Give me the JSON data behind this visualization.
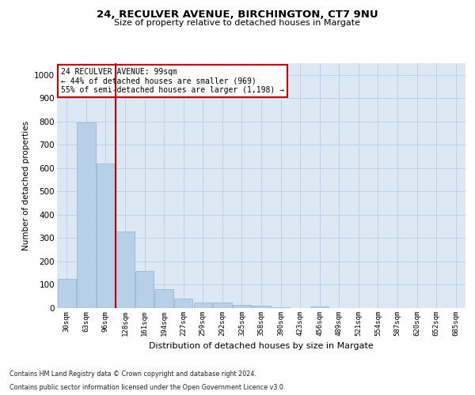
{
  "title_line1": "24, RECULVER AVENUE, BIRCHINGTON, CT7 9NU",
  "title_line2": "Size of property relative to detached houses in Margate",
  "xlabel": "Distribution of detached houses by size in Margate",
  "ylabel": "Number of detached properties",
  "categories": [
    "30sqm",
    "63sqm",
    "96sqm",
    "128sqm",
    "161sqm",
    "194sqm",
    "227sqm",
    "259sqm",
    "292sqm",
    "325sqm",
    "358sqm",
    "390sqm",
    "423sqm",
    "456sqm",
    "489sqm",
    "521sqm",
    "554sqm",
    "587sqm",
    "620sqm",
    "652sqm",
    "685sqm"
  ],
  "values": [
    125,
    795,
    620,
    330,
    160,
    80,
    40,
    25,
    25,
    15,
    10,
    5,
    0,
    8,
    0,
    0,
    0,
    0,
    0,
    0,
    0
  ],
  "bar_color": "#b8cfe8",
  "bar_edge_color": "#9ab8d8",
  "highlight_bar_index": 2,
  "highlight_color": "#cc0000",
  "ylim": [
    0,
    1050
  ],
  "yticks": [
    0,
    100,
    200,
    300,
    400,
    500,
    600,
    700,
    800,
    900,
    1000
  ],
  "annotation_text_line1": "24 RECULVER AVENUE: 99sqm",
  "annotation_text_line2": "← 44% of detached houses are smaller (969)",
  "annotation_text_line3": "55% of semi-detached houses are larger (1,198) →",
  "annotation_box_color": "#ffffff",
  "annotation_box_edge_color": "#cc0000",
  "plot_bg_color": "#dde8f5",
  "background_color": "#ffffff",
  "grid_color": "#c0cfe8",
  "footer_line1": "Contains HM Land Registry data © Crown copyright and database right 2024.",
  "footer_line2": "Contains public sector information licensed under the Open Government Licence v3.0."
}
